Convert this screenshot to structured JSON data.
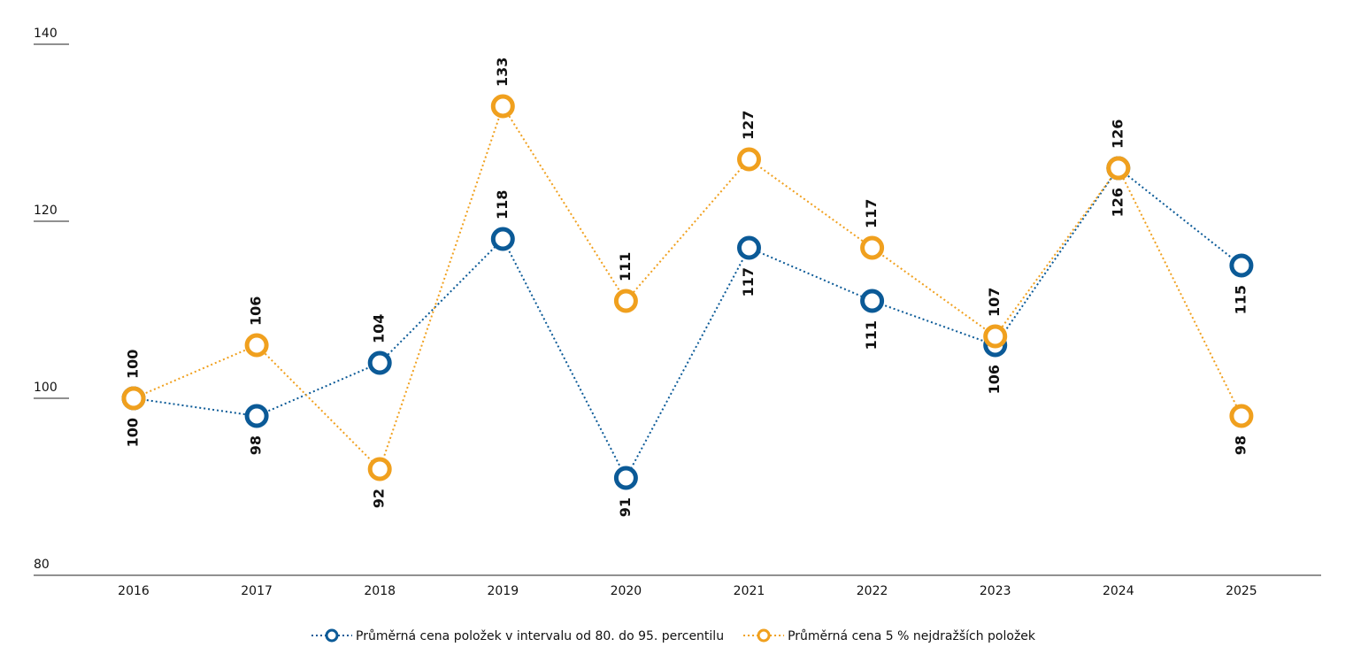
{
  "chart_data": {
    "type": "line",
    "categories": [
      "2016",
      "2017",
      "2018",
      "2019",
      "2020",
      "2021",
      "2022",
      "2023",
      "2024",
      "2025"
    ],
    "series": [
      {
        "name": "Průměrná cena položek v intervalu od 80. do 95. percentilu",
        "color": "#0b5a97",
        "values": [
          100,
          98,
          104,
          118,
          91,
          117,
          111,
          106,
          126,
          115
        ]
      },
      {
        "name": "Průměrná cena 5 % nejdražších položek",
        "color": "#f0a01e",
        "values": [
          100,
          106,
          92,
          133,
          111,
          127,
          117,
          107,
          126,
          98
        ]
      }
    ],
    "ylim": [
      80,
      140
    ],
    "yticks": [
      80,
      100,
      120,
      140
    ]
  }
}
